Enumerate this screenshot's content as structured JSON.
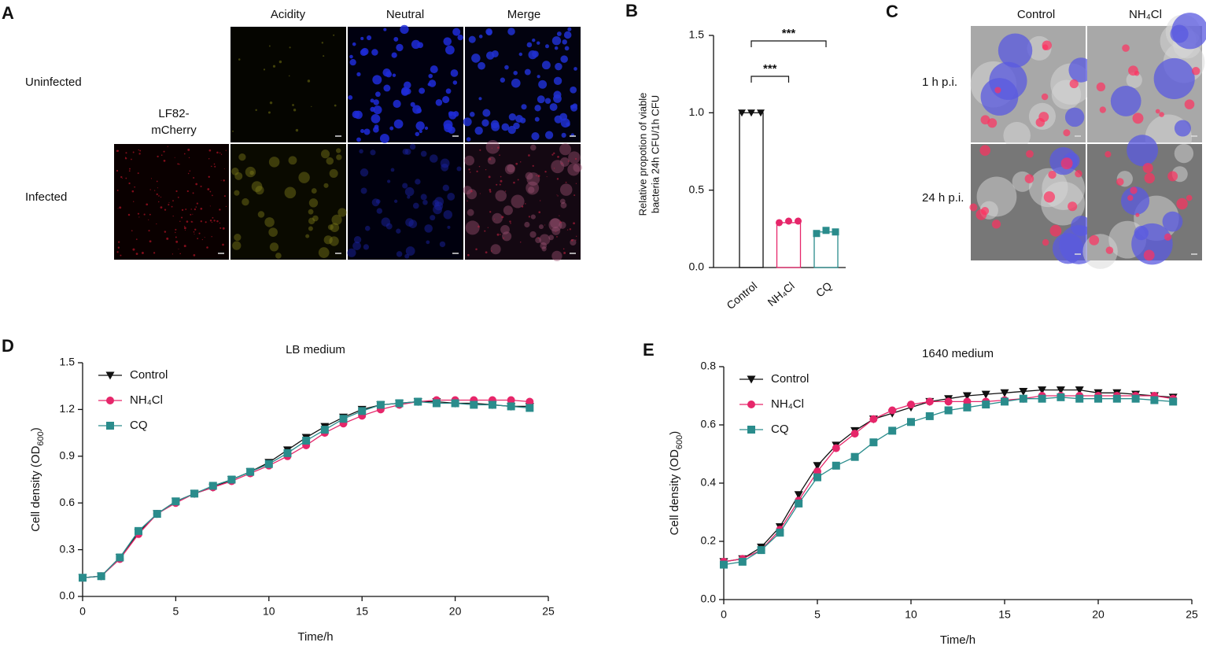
{
  "panel_a": {
    "letter": "A",
    "columns": [
      "Acidity",
      "Neutral",
      "Merge"
    ],
    "first_column_lines": [
      "LF82-",
      "mCherry"
    ],
    "rows": [
      "Uninfected",
      "Infected"
    ]
  },
  "panel_c": {
    "letter": "C",
    "columns": [
      "Control",
      "NH₄Cl"
    ],
    "rows": [
      "1 h p.i.",
      "24 h p.i."
    ]
  },
  "chart_data": [
    {
      "type": "bar",
      "panel_label": "B",
      "ylabel_lines": [
        "Relative propotion of viable",
        "bacteria 24h CFU/1h CFU"
      ],
      "categories": [
        "Control",
        "NH₄Cl",
        "CQ"
      ],
      "values": [
        1.0,
        0.29,
        0.23
      ],
      "points": [
        [
          1.0,
          1.0,
          1.0
        ],
        [
          0.29,
          0.3,
          0.3
        ],
        [
          0.22,
          0.24,
          0.23
        ]
      ],
      "colors": [
        "#111111",
        "#e6266a",
        "#2a8c8c"
      ],
      "markers": [
        "triangle-down",
        "circle",
        "square"
      ],
      "ylim": [
        0,
        1.5
      ],
      "yticks": [
        {
          "value": 0,
          "label": "0.0"
        },
        0.5,
        {
          "value": 1,
          "label": "1.0"
        },
        1.5
      ],
      "significance": [
        {
          "label": "***",
          "groups": [
            0,
            1
          ]
        },
        {
          "label": "***",
          "groups": [
            0,
            2
          ]
        }
      ]
    },
    {
      "type": "line",
      "panel_label": "D",
      "title": "LB medium",
      "xlabel": "Time/h",
      "ylabel": "Cell density (OD",
      "ylabel_sub": "600",
      "ylabel_end": ")",
      "x": [
        0,
        1,
        2,
        3,
        4,
        5,
        6,
        7,
        8,
        9,
        10,
        11,
        12,
        13,
        14,
        15,
        16,
        17,
        18,
        19,
        20,
        21,
        22,
        23,
        24
      ],
      "series": [
        {
          "name": "Control",
          "color": "#111111",
          "marker": "triangle-down",
          "values": [
            0.12,
            0.13,
            0.25,
            0.41,
            0.53,
            0.61,
            0.66,
            0.7,
            0.75,
            0.8,
            0.86,
            0.94,
            1.02,
            1.09,
            1.15,
            1.2,
            1.23,
            1.24,
            1.25,
            1.25,
            1.24,
            1.24,
            1.23,
            1.22,
            1.22
          ]
        },
        {
          "name": "NH₄Cl",
          "color": "#e6266a",
          "marker": "circle",
          "values": [
            0.12,
            0.13,
            0.24,
            0.4,
            0.53,
            0.6,
            0.66,
            0.7,
            0.74,
            0.79,
            0.84,
            0.9,
            0.97,
            1.05,
            1.11,
            1.16,
            1.2,
            1.23,
            1.25,
            1.26,
            1.26,
            1.26,
            1.26,
            1.26,
            1.25
          ]
        },
        {
          "name": "CQ",
          "color": "#2a8c8c",
          "marker": "square",
          "values": [
            0.12,
            0.13,
            0.25,
            0.42,
            0.53,
            0.61,
            0.66,
            0.71,
            0.75,
            0.8,
            0.85,
            0.92,
            1.0,
            1.07,
            1.14,
            1.19,
            1.23,
            1.24,
            1.25,
            1.24,
            1.24,
            1.23,
            1.23,
            1.22,
            1.21
          ]
        }
      ],
      "xlim": [
        0,
        25
      ],
      "xticks": [
        0,
        5,
        10,
        15,
        20,
        25
      ],
      "ylim": [
        0,
        1.5
      ],
      "yticks": [
        {
          "value": 0,
          "label": "0.0"
        },
        0.3,
        0.6,
        0.9,
        1.2,
        1.5
      ],
      "legend": "upper left"
    },
    {
      "type": "line",
      "panel_label": "E",
      "title": "1640 medium",
      "xlabel": "Time/h",
      "ylabel": "Cell density (OD",
      "ylabel_sub": "600",
      "ylabel_end": ")",
      "x": [
        0,
        1,
        2,
        3,
        4,
        5,
        6,
        7,
        8,
        9,
        10,
        11,
        12,
        13,
        14,
        15,
        16,
        17,
        18,
        19,
        20,
        21,
        22,
        23,
        24
      ],
      "series": [
        {
          "name": "Control",
          "color": "#111111",
          "marker": "triangle-down",
          "values": [
            0.13,
            0.14,
            0.18,
            0.25,
            0.36,
            0.46,
            0.53,
            0.58,
            0.62,
            0.64,
            0.66,
            0.68,
            0.69,
            0.7,
            0.705,
            0.71,
            0.715,
            0.72,
            0.72,
            0.72,
            0.71,
            0.71,
            0.705,
            0.7,
            0.695
          ]
        },
        {
          "name": "NH₄Cl",
          "color": "#e6266a",
          "marker": "circle",
          "values": [
            0.13,
            0.14,
            0.17,
            0.24,
            0.34,
            0.44,
            0.52,
            0.57,
            0.62,
            0.65,
            0.67,
            0.68,
            0.68,
            0.68,
            0.68,
            0.685,
            0.69,
            0.7,
            0.7,
            0.7,
            0.7,
            0.7,
            0.7,
            0.7,
            0.69
          ]
        },
        {
          "name": "CQ",
          "color": "#2a8c8c",
          "marker": "square",
          "values": [
            0.12,
            0.13,
            0.17,
            0.23,
            0.33,
            0.42,
            0.46,
            0.49,
            0.54,
            0.58,
            0.61,
            0.63,
            0.65,
            0.66,
            0.67,
            0.68,
            0.69,
            0.69,
            0.695,
            0.69,
            0.69,
            0.69,
            0.69,
            0.685,
            0.68
          ]
        }
      ],
      "xlim": [
        0,
        25
      ],
      "xticks": [
        0,
        5,
        10,
        15,
        20,
        25
      ],
      "ylim": [
        0,
        0.8
      ],
      "yticks": [
        {
          "value": 0,
          "label": "0.0"
        },
        0.2,
        0.4,
        0.6,
        0.8
      ],
      "legend": "upper left"
    }
  ]
}
